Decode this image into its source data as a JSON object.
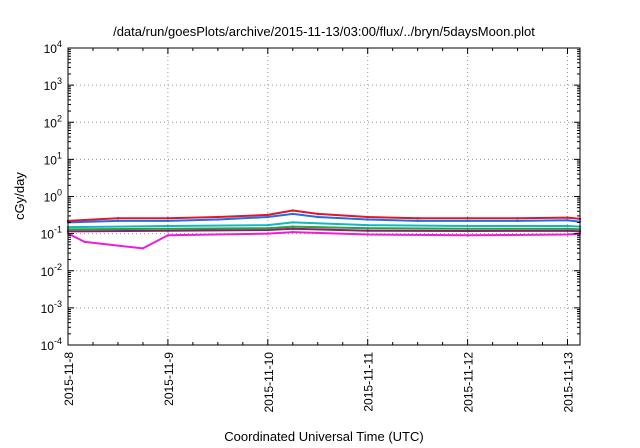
{
  "chart_data": {
    "type": "line",
    "title": "/data/run/goesPlots/archive/2015-11-13/03:00/flux/../bryn/5daysMoon.plot",
    "xlabel": "Coordinated Universal Time (UTC)",
    "ylabel": "cGy/day",
    "yscale": "log",
    "ylim": [
      0.0001,
      10000
    ],
    "y_ticks": [
      {
        "value": 0.0001,
        "base": "10",
        "exp": "-4"
      },
      {
        "value": 0.001,
        "base": "10",
        "exp": "-3"
      },
      {
        "value": 0.01,
        "base": "10",
        "exp": "-2"
      },
      {
        "value": 0.1,
        "base": "10",
        "exp": "-1"
      },
      {
        "value": 1,
        "base": "10",
        "exp": "0"
      },
      {
        "value": 10,
        "base": "10",
        "exp": "1"
      },
      {
        "value": 100,
        "base": "10",
        "exp": "2"
      },
      {
        "value": 1000,
        "base": "10",
        "exp": "3"
      },
      {
        "value": 10000,
        "base": "10",
        "exp": "4"
      }
    ],
    "x_range": [
      "2015-11-08",
      "2015-11-13T03:00"
    ],
    "x_ticks": [
      "2015-11-8",
      "2015-11-9",
      "2015-11-10",
      "2015-11-11",
      "2015-11-12",
      "2015-11-13"
    ],
    "grid": true,
    "legend": "none",
    "series": [
      {
        "color": "#e0162b",
        "x": [
          "2015-11-08T00:00",
          "2015-11-08T12:00",
          "2015-11-09T00:00",
          "2015-11-09T12:00",
          "2015-11-10T00:00",
          "2015-11-10T06:00",
          "2015-11-10T12:00",
          "2015-11-11T00:00",
          "2015-11-11T12:00",
          "2015-11-12T00:00",
          "2015-11-12T12:00",
          "2015-11-13T00:00",
          "2015-11-13T03:00"
        ],
        "values": [
          0.22,
          0.26,
          0.26,
          0.28,
          0.32,
          0.42,
          0.34,
          0.28,
          0.26,
          0.26,
          0.26,
          0.27,
          0.25
        ]
      },
      {
        "color": "#1e6fe6",
        "x": [
          "2015-11-08T00:00",
          "2015-11-08T12:00",
          "2015-11-09T00:00",
          "2015-11-09T12:00",
          "2015-11-10T00:00",
          "2015-11-10T06:00",
          "2015-11-10T12:00",
          "2015-11-11T00:00",
          "2015-11-11T12:00",
          "2015-11-12T00:00",
          "2015-11-12T12:00",
          "2015-11-13T00:00",
          "2015-11-13T03:00"
        ],
        "values": [
          0.2,
          0.22,
          0.22,
          0.24,
          0.28,
          0.34,
          0.28,
          0.24,
          0.22,
          0.22,
          0.22,
          0.23,
          0.21
        ]
      },
      {
        "color": "#11b8c2",
        "x": [
          "2015-11-08T00:00",
          "2015-11-09T00:00",
          "2015-11-10T00:00",
          "2015-11-10T06:00",
          "2015-11-11T00:00",
          "2015-11-12T00:00",
          "2015-11-13T00:00",
          "2015-11-13T03:00"
        ],
        "values": [
          0.15,
          0.16,
          0.17,
          0.2,
          0.17,
          0.16,
          0.16,
          0.155
        ]
      },
      {
        "color": "#2e9e3e",
        "x": [
          "2015-11-08T00:00",
          "2015-11-09T00:00",
          "2015-11-10T00:00",
          "2015-11-10T06:00",
          "2015-11-11T00:00",
          "2015-11-12T00:00",
          "2015-11-13T00:00",
          "2015-11-13T03:00"
        ],
        "values": [
          0.13,
          0.135,
          0.14,
          0.155,
          0.14,
          0.135,
          0.135,
          0.13
        ]
      },
      {
        "color": "#8b1f6e",
        "x": [
          "2015-11-08T00:00",
          "2015-11-09T00:00",
          "2015-11-10T00:00",
          "2015-11-10T06:00",
          "2015-11-11T00:00",
          "2015-11-12T00:00",
          "2015-11-13T00:00",
          "2015-11-13T03:00"
        ],
        "values": [
          0.115,
          0.12,
          0.125,
          0.135,
          0.12,
          0.118,
          0.12,
          0.115
        ]
      },
      {
        "color": "#ec1fd2",
        "x": [
          "2015-11-08T00:00",
          "2015-11-08T04:00",
          "2015-11-08T18:00",
          "2015-11-09T00:00",
          "2015-11-10T00:00",
          "2015-11-10T06:00",
          "2015-11-11T00:00",
          "2015-11-12T00:00",
          "2015-11-13T00:00",
          "2015-11-13T03:00"
        ],
        "values": [
          0.1,
          0.06,
          0.04,
          0.09,
          0.1,
          0.11,
          0.095,
          0.09,
          0.095,
          0.1
        ]
      }
    ]
  }
}
